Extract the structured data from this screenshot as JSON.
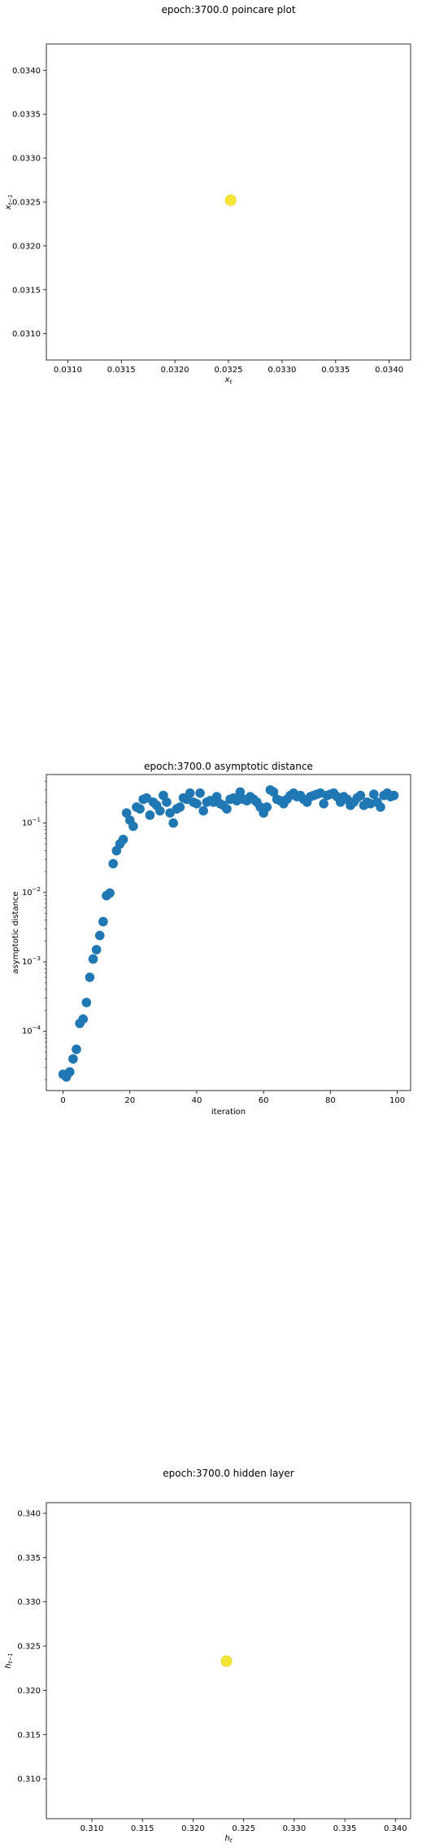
{
  "chart_data": [
    {
      "type": "scatter",
      "title": "epoch:3700.0 poincare plot",
      "xlabel": "x_t",
      "ylabel": "x_{t-1}",
      "xlim": [
        0.0308,
        0.0342
      ],
      "ylim": [
        0.0307,
        0.0343
      ],
      "xticks": [
        "0.0310",
        "0.0315",
        "0.0320",
        "0.0325",
        "0.0330",
        "0.0335",
        "0.0340"
      ],
      "yticks": [
        "0.0310",
        "0.0315",
        "0.0320",
        "0.0325",
        "0.0330",
        "0.0335",
        "0.0340"
      ],
      "grid": false,
      "points": [
        {
          "x": 0.03252,
          "y": 0.03252
        }
      ],
      "color": "#f5e536"
    },
    {
      "type": "scatter",
      "title": "epoch:3700.0 asymptotic distance",
      "xlabel": "iteration",
      "ylabel": "asymptotic distance",
      "yscale": "log",
      "xlim": [
        -5,
        104
      ],
      "ylim": [
        1.4e-05,
        0.5
      ],
      "xticks": [
        "0",
        "20",
        "40",
        "60",
        "80",
        "100"
      ],
      "yticks": [
        "10^-4",
        "10^-3",
        "10^-2",
        "10^-1"
      ],
      "grid": false,
      "color": "#1f77b4",
      "y": [
        2.4e-05,
        2.2e-05,
        2.6e-05,
        4e-05,
        5.5e-05,
        0.00013,
        0.00015,
        0.00026,
        0.0006,
        0.0011,
        0.0015,
        0.0024,
        0.0038,
        0.009,
        0.0098,
        0.026,
        0.04,
        0.05,
        0.058,
        0.14,
        0.11,
        0.09,
        0.17,
        0.16,
        0.22,
        0.23,
        0.13,
        0.2,
        0.18,
        0.15,
        0.25,
        0.2,
        0.14,
        0.1,
        0.16,
        0.17,
        0.23,
        0.22,
        0.27,
        0.2,
        0.19,
        0.27,
        0.15,
        0.2,
        0.21,
        0.2,
        0.24,
        0.19,
        0.18,
        0.16,
        0.22,
        0.23,
        0.21,
        0.28,
        0.22,
        0.21,
        0.24,
        0.22,
        0.2,
        0.17,
        0.14,
        0.17,
        0.3,
        0.28,
        0.22,
        0.21,
        0.19,
        0.22,
        0.25,
        0.27,
        0.24,
        0.25,
        0.22,
        0.2,
        0.24,
        0.25,
        0.26,
        0.27,
        0.19,
        0.25,
        0.26,
        0.27,
        0.24,
        0.2,
        0.24,
        0.22,
        0.18,
        0.2,
        0.23,
        0.25,
        0.18,
        0.2,
        0.19,
        0.26,
        0.2,
        0.17,
        0.25,
        0.27,
        0.24,
        0.25
      ]
    },
    {
      "type": "scatter",
      "title": "epoch:3700.0 hidden layer",
      "xlabel": "h_t",
      "ylabel": "h_{t-1}",
      "xlim": [
        0.3055,
        0.3415
      ],
      "ylim": [
        0.3055,
        0.3412
      ],
      "xticks": [
        "0.310",
        "0.315",
        "0.320",
        "0.325",
        "0.330",
        "0.335",
        "0.340"
      ],
      "yticks": [
        "0.310",
        "0.315",
        "0.320",
        "0.325",
        "0.330",
        "0.335",
        "0.340"
      ],
      "grid": false,
      "points": [
        {
          "x": 0.3233,
          "y": 0.3233
        }
      ],
      "color": "#f5e536"
    }
  ]
}
